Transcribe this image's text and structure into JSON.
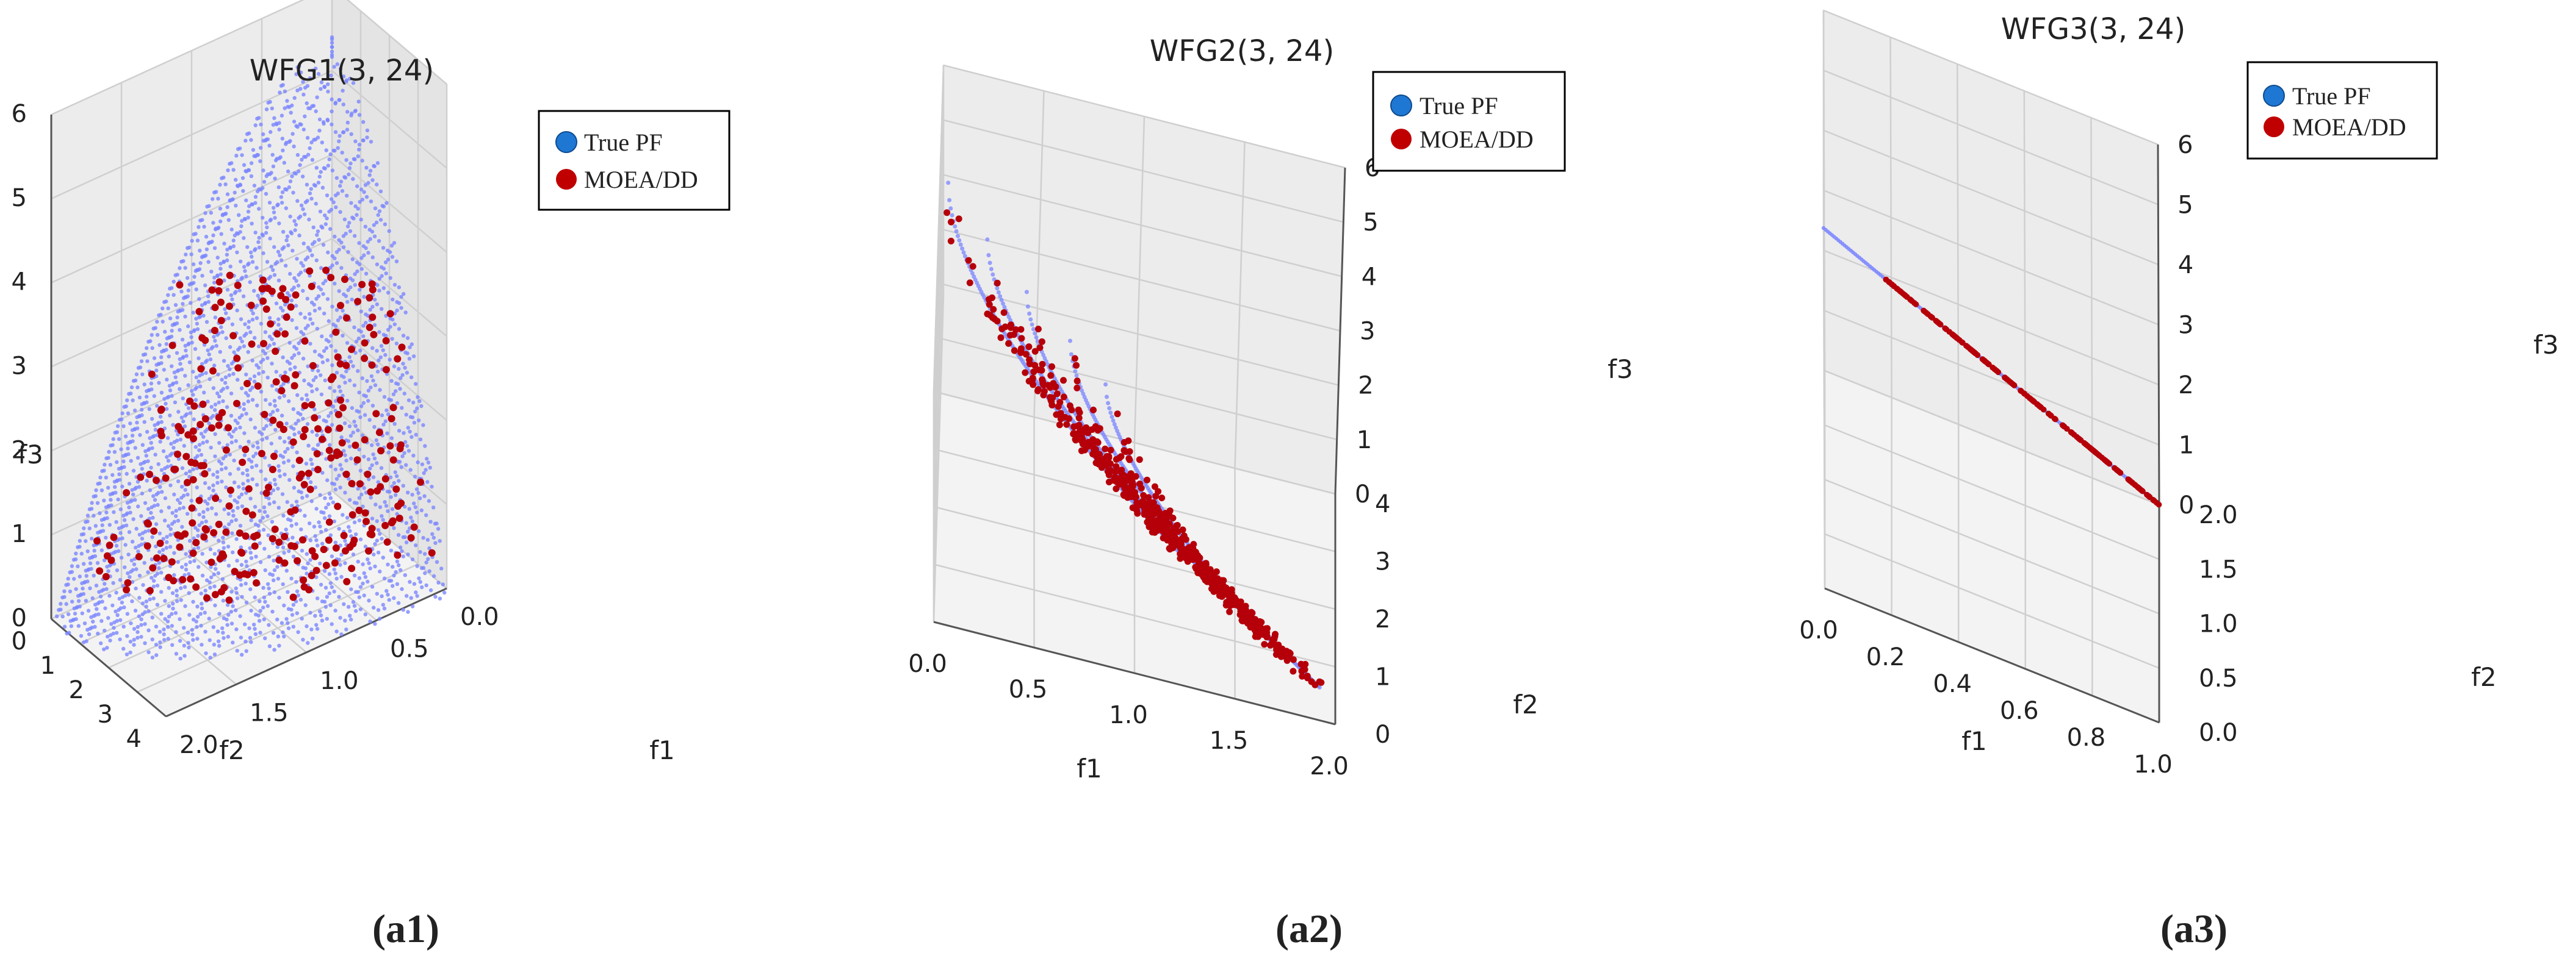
{
  "colors": {
    "true_pf": "#7b86ff",
    "moea_dd": "#b5000a",
    "legend_true_marker": "#1f77d4",
    "legend_moea_marker": "#c00000",
    "grid": "#cfcfcf",
    "pane": "#eeeeee",
    "text": "#222222"
  },
  "chart_data": [
    {
      "id": "a1",
      "type": "scatter3d",
      "title": "WFG1(3, 24)",
      "caption": "(a1)",
      "legend": [
        "True PF",
        "MOEA/DD"
      ],
      "xlabel": "f1",
      "ylabel": "f2",
      "zlabel": "f3",
      "xlim": [
        0,
        2
      ],
      "ylim": [
        0,
        4
      ],
      "zlim": [
        0,
        6
      ],
      "xticks": [
        "0.0",
        "0.5",
        "1.0",
        "1.5",
        "2.0"
      ],
      "yticks": [
        "0",
        "1",
        "2",
        "3",
        "4"
      ],
      "zticks": [
        "0",
        "1",
        "2",
        "3",
        "4",
        "5",
        "6"
      ],
      "surface": "WFG1 mixed/convex front, apex f3=6 at f1=0,f2=0",
      "series": [
        {
          "name": "True PF",
          "count": 2600
        },
        {
          "name": "MOEA/DD",
          "count": 300
        }
      ]
    },
    {
      "id": "a2",
      "type": "scatter3d",
      "title": "WFG2(3, 24)",
      "caption": "(a2)",
      "legend": [
        "True PF",
        "MOEA/DD"
      ],
      "xlabel": "f1",
      "ylabel": "f2",
      "zlabel": "f3",
      "xlim": [
        0,
        2
      ],
      "ylim": [
        0,
        4
      ],
      "zlim": [
        0,
        6
      ],
      "xticks": [
        "0.0",
        "0.5",
        "1.0",
        "1.5",
        "2.0"
      ],
      "yticks": [
        "0",
        "1",
        "2",
        "3",
        "4"
      ],
      "zticks": [
        "0",
        "1",
        "2",
        "3",
        "4",
        "5",
        "6"
      ],
      "surface": "WFG2 disconnected convex front, 5 arcs",
      "series": [
        {
          "name": "True PF",
          "count": 900
        },
        {
          "name": "MOEA/DD",
          "count": 600
        }
      ]
    },
    {
      "id": "a3",
      "type": "scatter3d",
      "title": "WFG3(3, 24)",
      "caption": "(a3)",
      "legend": [
        "True PF",
        "MOEA/DD"
      ],
      "xlabel": "f1",
      "ylabel": "f2",
      "zlabel": "f3",
      "xlim": [
        0,
        1
      ],
      "ylim": [
        0,
        2
      ],
      "zlim": [
        0,
        6
      ],
      "xticks": [
        "0.0",
        "0.2",
        "0.4",
        "0.6",
        "0.8",
        "1.0"
      ],
      "yticks": [
        "0.0",
        "0.5",
        "1.0",
        "1.5",
        "2.0"
      ],
      "zticks": [
        "0",
        "1",
        "2",
        "3",
        "4",
        "5",
        "6"
      ],
      "surface": "WFG3 degenerate linear front: f1=t, f2=2t, f3=6(1-t)",
      "series": [
        {
          "name": "True PF",
          "count": 160
        },
        {
          "name": "MOEA/DD",
          "count": 200
        }
      ]
    }
  ]
}
